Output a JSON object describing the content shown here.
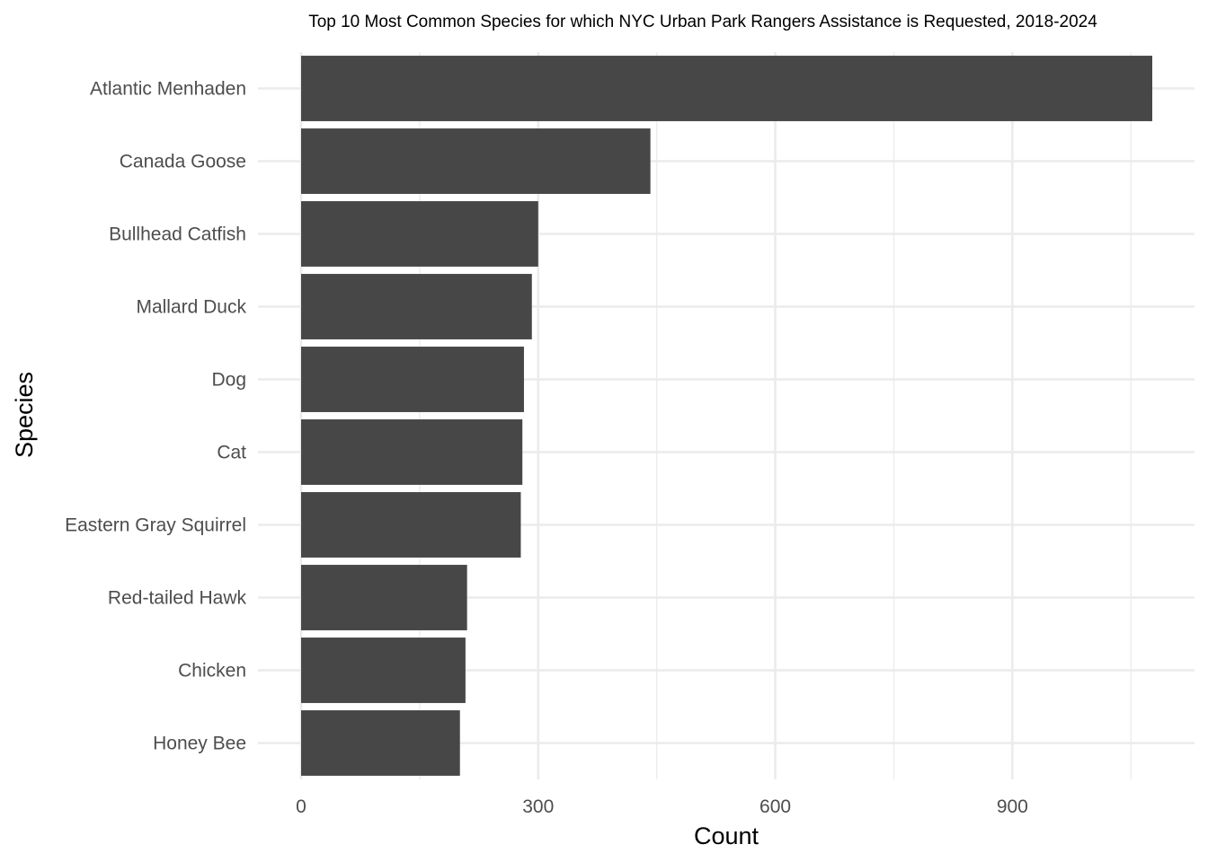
{
  "chart_data": {
    "type": "bar",
    "orientation": "horizontal",
    "title": "Top 10 Most Common Species for which NYC Urban Park Rangers Assistance is Requested, 2018-2024",
    "xlabel": "Count",
    "ylabel": "Species",
    "categories": [
      "Atlantic Menhaden",
      "Canada Goose",
      "Bullhead Catfish",
      "Mallard Duck",
      "Dog",
      "Cat",
      "Eastern Gray Squirrel",
      "Red-tailed Hawk",
      "Chicken",
      "Honey Bee"
    ],
    "values": [
      1077,
      442,
      300,
      292,
      282,
      280,
      278,
      210,
      208,
      201
    ],
    "xlim": [
      0,
      1077
    ],
    "xticks": [
      0,
      300,
      600,
      900
    ],
    "xtick_labels": [
      "0",
      "300",
      "600",
      "900"
    ],
    "bar_color": "#474747",
    "grid": true,
    "legend": "none"
  }
}
